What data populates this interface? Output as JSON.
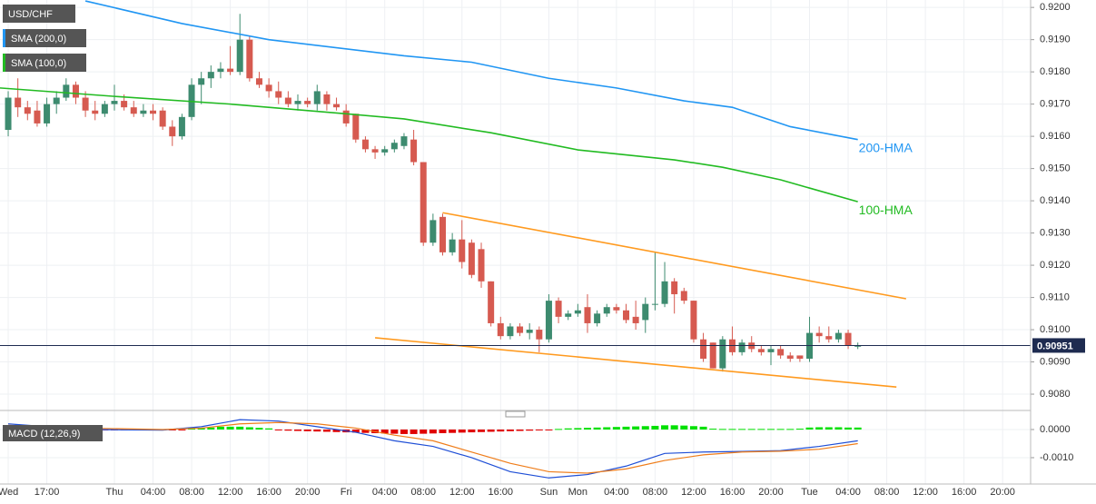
{
  "chart_data": [
    {
      "type": "candlestick",
      "title": "USD/CHF",
      "grid": true,
      "up_color": "#3d8b6f",
      "down_color": "#d65a50",
      "open": [
        0.9162,
        0.9172,
        0.9169,
        0.9168,
        0.9164,
        0.917,
        0.9172,
        0.9176,
        0.9172,
        0.9168,
        0.9167,
        0.917,
        0.9171,
        0.9169,
        0.9167,
        0.9168,
        0.9168,
        0.9163,
        0.916,
        0.9166,
        0.9176,
        0.9178,
        0.918,
        0.9181,
        0.918,
        0.919,
        0.9178,
        0.9176,
        0.9174,
        0.9172,
        0.917,
        0.9171,
        0.917,
        0.9173,
        0.917,
        0.9168,
        0.9167,
        0.9159,
        0.9156,
        0.9155,
        0.9156,
        0.9157,
        0.9159,
        0.9152,
        0.9127,
        0.9135,
        0.9124,
        0.9128,
        0.9127,
        0.9125,
        0.9115,
        0.9102,
        0.9098,
        0.9101,
        0.9099,
        0.91,
        0.9097,
        0.9109,
        0.9104,
        0.9105,
        0.9107,
        0.9102,
        0.9105,
        0.9107,
        0.9106,
        0.9104,
        0.9103,
        0.9108,
        0.9108,
        0.9115,
        0.9112,
        0.9109,
        0.9097,
        0.9096,
        0.9088,
        0.9097,
        0.9093,
        0.9096,
        0.9094,
        0.9093,
        0.9094,
        0.9092,
        0.9092,
        0.9091,
        0.9099,
        0.9098,
        0.9097,
        0.9099,
        0.9095
      ],
      "high": [
        0.9174,
        0.9178,
        0.9171,
        0.9171,
        0.9172,
        0.9174,
        0.9178,
        0.9177,
        0.9174,
        0.9171,
        0.9171,
        0.9176,
        0.9173,
        0.9171,
        0.917,
        0.917,
        0.9169,
        0.9165,
        0.9167,
        0.9178,
        0.918,
        0.9182,
        0.9183,
        0.9188,
        0.9198,
        0.9191,
        0.918,
        0.9178,
        0.9177,
        0.9174,
        0.9173,
        0.9172,
        0.9176,
        0.9174,
        0.9172,
        0.917,
        0.9167,
        0.916,
        0.9157,
        0.9157,
        0.9159,
        0.9161,
        0.9162,
        0.9152,
        0.9136,
        0.9136,
        0.913,
        0.9134,
        0.9128,
        0.9127,
        0.9115,
        0.9104,
        0.9102,
        0.9102,
        0.9102,
        0.9101,
        0.9111,
        0.911,
        0.9106,
        0.9108,
        0.9111,
        0.9106,
        0.9108,
        0.9108,
        0.9108,
        0.9109,
        0.911,
        0.9124,
        0.9121,
        0.9116,
        0.9113,
        0.9109,
        0.9099,
        0.9096,
        0.9098,
        0.9101,
        0.9097,
        0.9098,
        0.9095,
        0.9095,
        0.9095,
        0.9093,
        0.9092,
        0.9104,
        0.9101,
        0.9101,
        0.91,
        0.91,
        0.9096
      ],
      "low": [
        0.916,
        0.9166,
        0.9165,
        0.9163,
        0.9163,
        0.9167,
        0.9171,
        0.917,
        0.9166,
        0.9165,
        0.9166,
        0.9168,
        0.9168,
        0.9166,
        0.9166,
        0.9165,
        0.9162,
        0.9157,
        0.9159,
        0.9165,
        0.917,
        0.9175,
        0.9178,
        0.9179,
        0.9179,
        0.9177,
        0.9175,
        0.9172,
        0.917,
        0.9169,
        0.9168,
        0.9169,
        0.9168,
        0.9168,
        0.9168,
        0.9163,
        0.9158,
        0.9155,
        0.9153,
        0.9154,
        0.9155,
        0.9156,
        0.9151,
        0.9126,
        0.9126,
        0.9123,
        0.9123,
        0.9119,
        0.9116,
        0.9113,
        0.9101,
        0.9097,
        0.9097,
        0.9098,
        0.9097,
        0.9093,
        0.9096,
        0.9102,
        0.9103,
        0.9104,
        0.9099,
        0.9101,
        0.9104,
        0.9105,
        0.9102,
        0.91,
        0.9099,
        0.9106,
        0.9107,
        0.9105,
        0.9108,
        0.9096,
        0.909,
        0.9088,
        0.9087,
        0.9092,
        0.9092,
        0.9093,
        0.9092,
        0.9089,
        0.9091,
        0.909,
        0.909,
        0.909,
        0.9096,
        0.9096,
        0.9096,
        0.9094,
        0.9094
      ],
      "close": [
        0.9172,
        0.9169,
        0.9167,
        0.9164,
        0.917,
        0.9172,
        0.9176,
        0.9172,
        0.9168,
        0.9167,
        0.917,
        0.9171,
        0.9169,
        0.9167,
        0.9168,
        0.9167,
        0.9163,
        0.916,
        0.9166,
        0.9176,
        0.9178,
        0.918,
        0.9181,
        0.918,
        0.919,
        0.9178,
        0.9176,
        0.9174,
        0.9172,
        0.917,
        0.9171,
        0.917,
        0.9174,
        0.917,
        0.9169,
        0.9164,
        0.9159,
        0.9156,
        0.9155,
        0.9156,
        0.9158,
        0.916,
        0.9152,
        0.9127,
        0.9134,
        0.9124,
        0.9128,
        0.9121,
        0.9117,
        0.9115,
        0.9102,
        0.9098,
        0.9101,
        0.9099,
        0.91,
        0.9097,
        0.9109,
        0.9104,
        0.9105,
        0.9106,
        0.9102,
        0.9105,
        0.9107,
        0.9106,
        0.9103,
        0.9102,
        0.9108,
        0.9108,
        0.9115,
        0.9111,
        0.9109,
        0.9097,
        0.9091,
        0.9088,
        0.9097,
        0.9093,
        0.9096,
        0.9094,
        0.9093,
        0.9094,
        0.9092,
        0.9091,
        0.9091,
        0.9099,
        0.9098,
        0.9097,
        0.9099,
        0.9095,
        0.9095
      ],
      "legend": [
        {
          "name": "SMA (200,0)",
          "color": "#2196f3"
        },
        {
          "name": "SMA (100,0)",
          "color": "#22bb22"
        }
      ],
      "series": [
        {
          "name": "200-HMA",
          "color": "#2196f3",
          "x": [
            8,
            18,
            27,
            41,
            48,
            56,
            63,
            70,
            75,
            81,
            88
          ],
          "values": [
            0.9202,
            0.9195,
            0.919,
            0.9185,
            0.9183,
            0.9178,
            0.9175,
            0.9171,
            0.9169,
            0.9163,
            0.9159
          ]
        },
        {
          "name": "100-HMA",
          "color": "#22bb22",
          "x": [
            -0.85,
            11,
            23,
            35,
            41,
            50,
            59,
            69,
            74,
            80,
            88
          ],
          "values": [
            0.9175,
            0.91724,
            0.917,
            0.9167,
            0.91654,
            0.91611,
            0.91558,
            0.91527,
            0.91504,
            0.91465,
            0.91397
          ]
        }
      ],
      "trendlines": [
        {
          "color": "#ff9a1f",
          "x": [
            45,
            93
          ],
          "values": [
            0.91363,
            0.91096
          ]
        },
        {
          "color": "#ff9a1f",
          "x": [
            38,
            92
          ],
          "values": [
            0.90975,
            0.90822
          ]
        }
      ],
      "last_price": {
        "value": 0.90951,
        "label": "0.90951",
        "color": "#1e2b50"
      },
      "xlim": [
        -0.85,
        105.9
      ],
      "xticks": [
        {
          "value": 0,
          "label": "Wed"
        },
        {
          "value": 4,
          "label": "17:00"
        },
        {
          "value": 11,
          "label": "Thu"
        },
        {
          "value": 15,
          "label": "04:00"
        },
        {
          "value": 19,
          "label": "08:00"
        },
        {
          "value": 23,
          "label": "12:00"
        },
        {
          "value": 27,
          "label": "16:00"
        },
        {
          "value": 31,
          "label": "20:00"
        },
        {
          "value": 35,
          "label": "Fri"
        },
        {
          "value": 39,
          "label": "04:00"
        },
        {
          "value": 43,
          "label": "08:00"
        },
        {
          "value": 47,
          "label": "12:00"
        },
        {
          "value": 51,
          "label": "16:00"
        },
        {
          "value": 56,
          "label": "Sun"
        },
        {
          "value": 59,
          "label": "Mon"
        },
        {
          "value": 63,
          "label": "04:00"
        },
        {
          "value": 67,
          "label": "08:00"
        },
        {
          "value": 71,
          "label": "12:00"
        },
        {
          "value": 75,
          "label": "16:00"
        },
        {
          "value": 79,
          "label": "20:00"
        },
        {
          "value": 83,
          "label": "Tue"
        },
        {
          "value": 87,
          "label": "04:00"
        },
        {
          "value": 91,
          "label": "08:00"
        },
        {
          "value": 95,
          "label": "12:00"
        },
        {
          "value": 99,
          "label": "16:00"
        },
        {
          "value": 103,
          "label": "20:00"
        }
      ],
      "ylim": [
        0.90755,
        0.92023
      ],
      "yticks": [
        {
          "value": 0.908,
          "label": "0.9080"
        },
        {
          "value": 0.909,
          "label": "0.9090"
        },
        {
          "value": 0.91,
          "label": "0.9100"
        },
        {
          "value": 0.911,
          "label": "0.9110"
        },
        {
          "value": 0.912,
          "label": "0.9120"
        },
        {
          "value": 0.913,
          "label": "0.9130"
        },
        {
          "value": 0.914,
          "label": "0.9140"
        },
        {
          "value": 0.915,
          "label": "0.9150"
        },
        {
          "value": 0.916,
          "label": "0.9160"
        },
        {
          "value": 0.917,
          "label": "0.9170"
        },
        {
          "value": 0.918,
          "label": "0.9180"
        },
        {
          "value": 0.919,
          "label": "0.9190"
        },
        {
          "value": 0.92,
          "label": "0.9200"
        }
      ]
    },
    {
      "type": "macd",
      "title": "MACD (12,26,9)",
      "histogram": {
        "up_color": "#00e000",
        "down_color": "#e00000",
        "values": [
          -3e-05,
          -3e-05,
          -3e-05,
          -3e-05,
          -3e-05,
          -3e-05,
          -3e-05,
          -3e-05,
          -3e-05,
          -3e-05,
          -3e-05,
          -2e-05,
          -2e-05,
          -2e-05,
          -2e-05,
          -2e-05,
          -2e-05,
          -2e-05,
          -2e-05,
          3e-05,
          5e-05,
          7e-05,
          0.0001,
          0.0001,
          0.0001,
          8e-05,
          6e-05,
          4e-05,
          -2e-05,
          -4e-05,
          -5e-05,
          -6e-05,
          -7e-05,
          -8e-05,
          -9e-05,
          -0.0001,
          -0.00011,
          -0.00012,
          -0.00013,
          -0.00014,
          -0.00015,
          -0.00016,
          -0.00016,
          -0.00015,
          -0.00014,
          -0.00013,
          -0.00012,
          -0.00011,
          -0.0001,
          -9e-05,
          -8e-05,
          -7e-05,
          -6e-05,
          -5e-05,
          -4e-05,
          -3e-05,
          -2e-05,
          2e-05,
          4e-05,
          5e-05,
          6e-05,
          7e-05,
          8e-05,
          9e-05,
          0.0001,
          0.00011,
          0.00012,
          0.00013,
          0.00015,
          0.00015,
          0.00014,
          0.00012,
          0.0001,
          3e-05,
          2e-05,
          2e-05,
          2e-05,
          2e-05,
          2e-05,
          2e-05,
          2e-05,
          2e-05,
          3e-05,
          7e-05,
          8e-05,
          8e-05,
          8e-05,
          7e-05,
          7e-05
        ]
      },
      "series": [
        {
          "color": "#1f4fd6",
          "x": [
            0,
            8,
            16,
            20,
            24,
            28,
            32,
            36,
            40,
            44,
            48,
            52,
            56,
            60,
            64,
            68,
            72,
            76,
            80,
            84,
            88
          ],
          "values": [
            0.0002,
            0.0,
            -2e-05,
            0.0001,
            0.00035,
            0.0003,
            0.0001,
            -0.0001,
            -0.0004,
            -0.0006,
            -0.001,
            -0.0015,
            -0.00172,
            -0.0016,
            -0.0013,
            -0.00085,
            -0.0008,
            -0.00078,
            -0.00075,
            -0.0006,
            -0.0004
          ]
        },
        {
          "color": "#ef7d1a",
          "x": [
            0,
            8,
            16,
            20,
            24,
            28,
            32,
            36,
            40,
            44,
            48,
            52,
            56,
            60,
            64,
            68,
            72,
            76,
            80,
            84,
            88
          ],
          "values": [
            0.00015,
            5e-05,
            0.0,
            5e-05,
            0.0002,
            0.00025,
            0.0002,
            5e-05,
            -0.0002,
            -0.0004,
            -0.0008,
            -0.0012,
            -0.0015,
            -0.00155,
            -0.0014,
            -0.0011,
            -0.0009,
            -0.0008,
            -0.00077,
            -0.0007,
            -0.0005
          ]
        }
      ],
      "ylim": [
        -0.00184,
        0.00058
      ],
      "yticks": [
        {
          "value": 0,
          "label": "0.0000"
        },
        {
          "value": -0.001,
          "label": "-0.0010"
        }
      ]
    }
  ]
}
